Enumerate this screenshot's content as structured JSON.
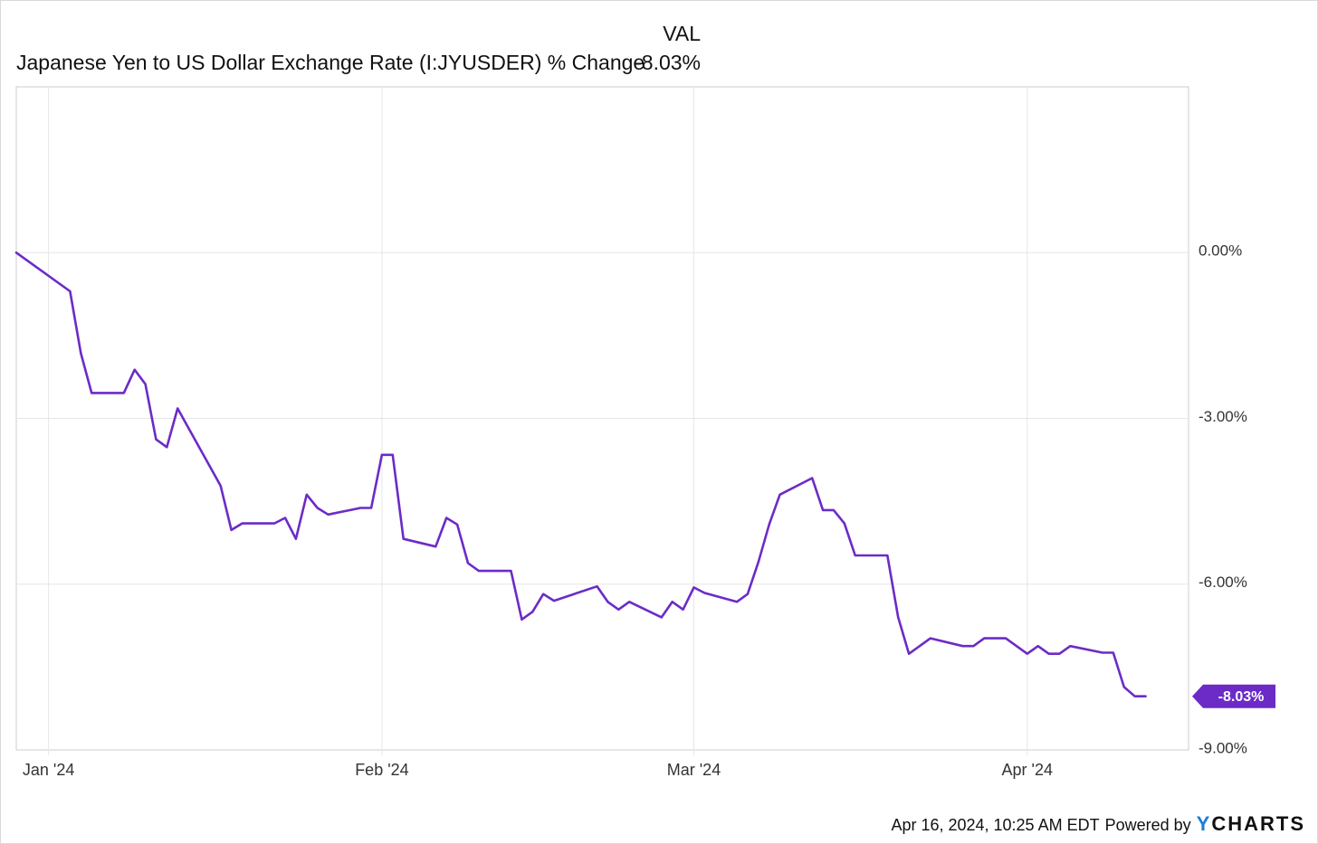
{
  "header": {
    "column_label": "VAL",
    "series_name": "Japanese Yen to US Dollar Exchange Rate (I:JYUSDER) % Change",
    "series_value": "-8.03%"
  },
  "footer": {
    "timestamp": "Apr 16, 2024, 10:25 AM EDT",
    "powered_by": "Powered by",
    "brand_y": "Y",
    "brand_rest": "CHARTS"
  },
  "colors": {
    "line": "#6c2bc7",
    "grid": "#e6e6e6",
    "axis": "#cccccc",
    "text": "#333333"
  },
  "chart_data": {
    "type": "line",
    "title": "Japanese Yen to US Dollar Exchange Rate (I:JYUSDER) % Change",
    "xlabel": "",
    "ylabel": "",
    "x_range": [
      "2023-12-29",
      "2024-04-16"
    ],
    "ylim": [
      -9.0,
      3.0
    ],
    "y_ticks": [
      0,
      -3,
      -6,
      -9
    ],
    "y_tick_labels": [
      "0.00%",
      "-3.00%",
      "-6.00%",
      "-9.00%"
    ],
    "x_ticks": [
      {
        "date": "2024-01-01",
        "label": "Jan '24"
      },
      {
        "date": "2024-02-01",
        "label": "Feb '24"
      },
      {
        "date": "2024-03-01",
        "label": "Mar '24"
      },
      {
        "date": "2024-04-01",
        "label": "Apr '24"
      }
    ],
    "grid": true,
    "end_label": "-8.03%",
    "series": [
      {
        "name": "Japanese Yen to US Dollar Exchange Rate (I:JYUSDER) % Change",
        "points": [
          [
            "2023-12-29",
            0.0
          ],
          [
            "2024-01-03",
            -0.7
          ],
          [
            "2024-01-04",
            -1.82
          ],
          [
            "2024-01-05",
            -2.54
          ],
          [
            "2024-01-08",
            -2.54
          ],
          [
            "2024-01-09",
            -2.12
          ],
          [
            "2024-01-10",
            -2.38
          ],
          [
            "2024-01-11",
            -3.38
          ],
          [
            "2024-01-12",
            -3.52
          ],
          [
            "2024-01-13",
            -2.82
          ],
          [
            "2024-01-17",
            -4.22
          ],
          [
            "2024-01-18",
            -5.02
          ],
          [
            "2024-01-19",
            -4.9
          ],
          [
            "2024-01-22",
            -4.9
          ],
          [
            "2024-01-23",
            -4.8
          ],
          [
            "2024-01-24",
            -5.18
          ],
          [
            "2024-01-25",
            -4.38
          ],
          [
            "2024-01-26",
            -4.62
          ],
          [
            "2024-01-27",
            -4.74
          ],
          [
            "2024-01-30",
            -4.62
          ],
          [
            "2024-01-31",
            -4.62
          ],
          [
            "2024-02-01",
            -3.66
          ],
          [
            "2024-02-02",
            -3.66
          ],
          [
            "2024-02-03",
            -5.18
          ],
          [
            "2024-02-06",
            -5.32
          ],
          [
            "2024-02-07",
            -4.8
          ],
          [
            "2024-02-08",
            -4.92
          ],
          [
            "2024-02-09",
            -5.62
          ],
          [
            "2024-02-10",
            -5.76
          ],
          [
            "2024-02-13",
            -5.76
          ],
          [
            "2024-02-14",
            -6.64
          ],
          [
            "2024-02-15",
            -6.5
          ],
          [
            "2024-02-16",
            -6.18
          ],
          [
            "2024-02-17",
            -6.3
          ],
          [
            "2024-02-21",
            -6.04
          ],
          [
            "2024-02-22",
            -6.32
          ],
          [
            "2024-02-23",
            -6.46
          ],
          [
            "2024-02-24",
            -6.32
          ],
          [
            "2024-02-27",
            -6.6
          ],
          [
            "2024-02-28",
            -6.32
          ],
          [
            "2024-02-29",
            -6.46
          ],
          [
            "2024-03-01",
            -6.06
          ],
          [
            "2024-03-02",
            -6.16
          ],
          [
            "2024-03-05",
            -6.32
          ],
          [
            "2024-03-06",
            -6.18
          ],
          [
            "2024-03-07",
            -5.6
          ],
          [
            "2024-03-08",
            -4.92
          ],
          [
            "2024-03-09",
            -4.38
          ],
          [
            "2024-03-12",
            -4.08
          ],
          [
            "2024-03-13",
            -4.66
          ],
          [
            "2024-03-14",
            -4.66
          ],
          [
            "2024-03-15",
            -4.9
          ],
          [
            "2024-03-16",
            -5.48
          ],
          [
            "2024-03-19",
            -5.48
          ],
          [
            "2024-03-20",
            -6.6
          ],
          [
            "2024-03-21",
            -7.26
          ],
          [
            "2024-03-23",
            -6.98
          ],
          [
            "2024-03-26",
            -7.12
          ],
          [
            "2024-03-27",
            -7.12
          ],
          [
            "2024-03-28",
            -6.98
          ],
          [
            "2024-03-30",
            -6.98
          ],
          [
            "2024-04-01",
            -7.26
          ],
          [
            "2024-04-02",
            -7.12
          ],
          [
            "2024-04-03",
            -7.26
          ],
          [
            "2024-04-04",
            -7.26
          ],
          [
            "2024-04-05",
            -7.12
          ],
          [
            "2024-04-08",
            -7.24
          ],
          [
            "2024-04-09",
            -7.24
          ],
          [
            "2024-04-10",
            -7.86
          ],
          [
            "2024-04-11",
            -8.03
          ],
          [
            "2024-04-12",
            -8.03
          ]
        ]
      }
    ]
  }
}
